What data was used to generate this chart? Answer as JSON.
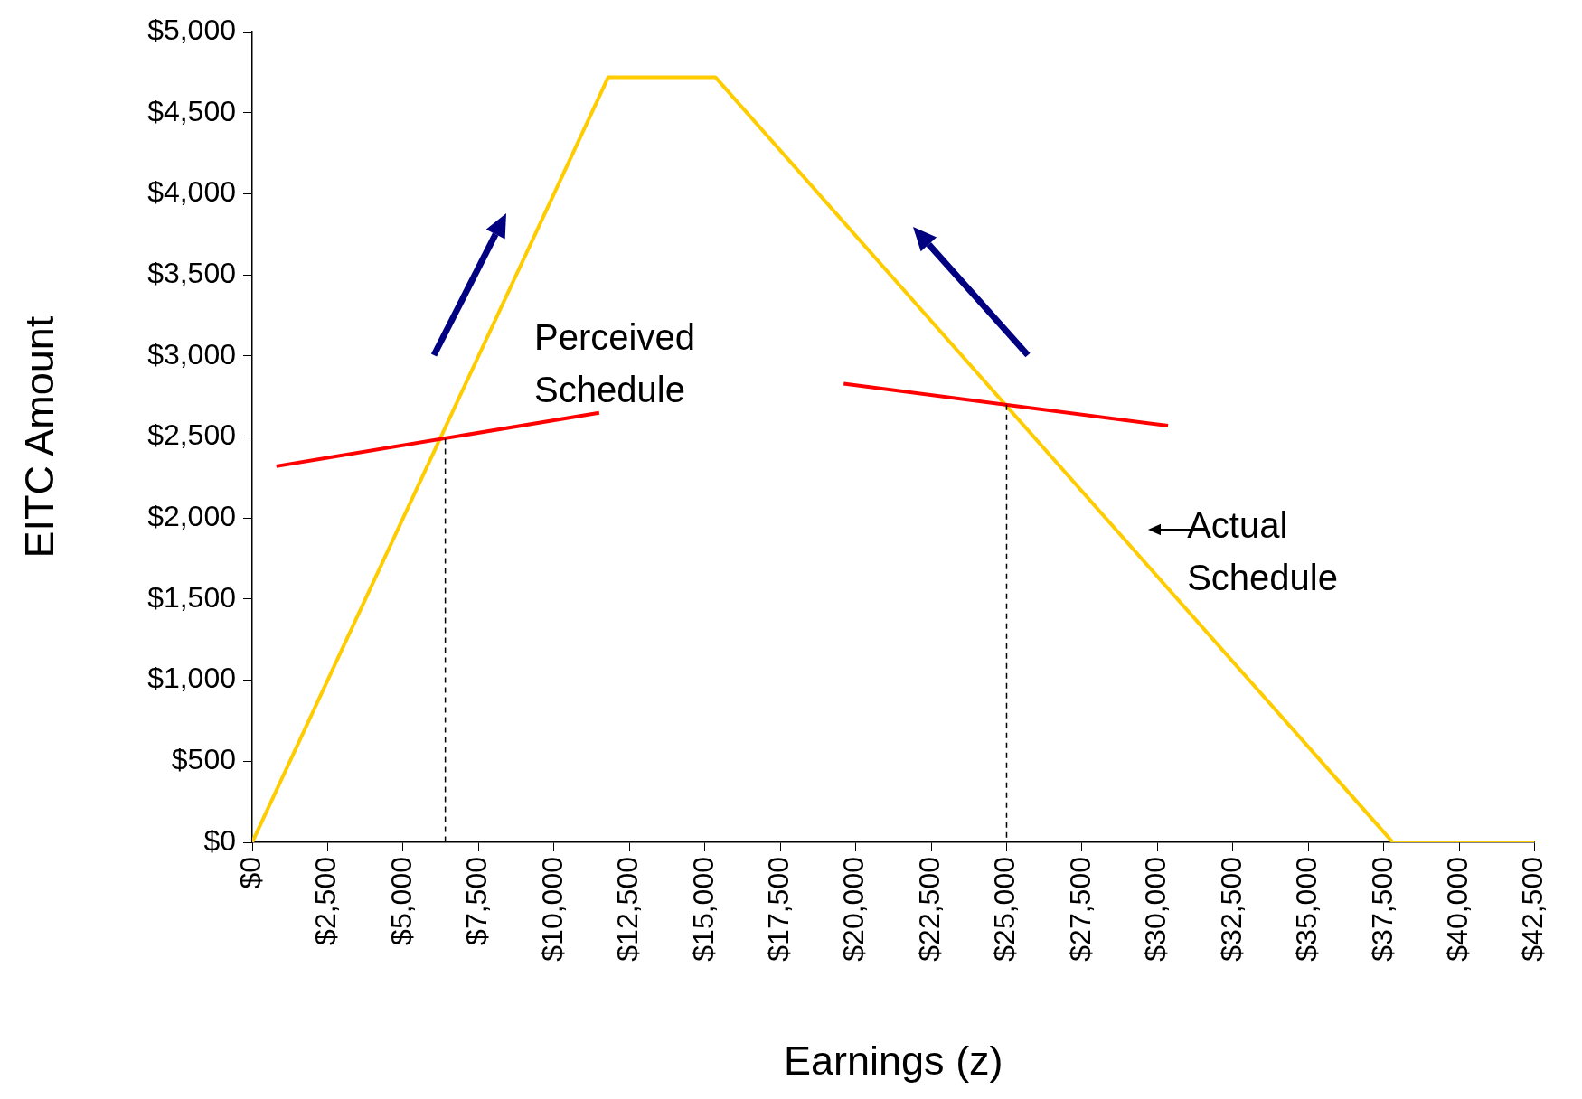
{
  "chart_data": {
    "type": "line",
    "xlabel": "Earnings (z)",
    "ylabel": "EITC Amount",
    "xlim": [
      0,
      42500
    ],
    "ylim": [
      0,
      5000
    ],
    "xticks": [
      {
        "value": 0,
        "label": "$0"
      },
      {
        "value": 2500,
        "label": "$2,500"
      },
      {
        "value": 5000,
        "label": "$5,000"
      },
      {
        "value": 7500,
        "label": "$7,500"
      },
      {
        "value": 10000,
        "label": "$10,000"
      },
      {
        "value": 12500,
        "label": "$12,500"
      },
      {
        "value": 15000,
        "label": "$15,000"
      },
      {
        "value": 17500,
        "label": "$17,500"
      },
      {
        "value": 20000,
        "label": "$20,000"
      },
      {
        "value": 22500,
        "label": "$22,500"
      },
      {
        "value": 25000,
        "label": "$25,000"
      },
      {
        "value": 27500,
        "label": "$27,500"
      },
      {
        "value": 30000,
        "label": "$30,000"
      },
      {
        "value": 32500,
        "label": "$32,500"
      },
      {
        "value": 35000,
        "label": "$35,000"
      },
      {
        "value": 37500,
        "label": "$37,500"
      },
      {
        "value": 40000,
        "label": "$40,000"
      },
      {
        "value": 42500,
        "label": "$42,500"
      }
    ],
    "yticks": [
      {
        "value": 0,
        "label": "$0"
      },
      {
        "value": 500,
        "label": "$500"
      },
      {
        "value": 1000,
        "label": "$1,000"
      },
      {
        "value": 1500,
        "label": "$1,500"
      },
      {
        "value": 2000,
        "label": "$2,000"
      },
      {
        "value": 2500,
        "label": "$2,500"
      },
      {
        "value": 3000,
        "label": "$3,000"
      },
      {
        "value": 3500,
        "label": "$3,500"
      },
      {
        "value": 4000,
        "label": "$4,000"
      },
      {
        "value": 4500,
        "label": "$4,500"
      },
      {
        "value": 5000,
        "label": "$5,000"
      }
    ],
    "grid": false,
    "legend": false,
    "marker": "none",
    "series": [
      {
        "color": "#ffcc00",
        "x": [
          0,
          11800,
          15350,
          37800,
          42500
        ],
        "values": [
          0,
          4720,
          4720,
          0,
          0
        ]
      },
      {
        "color": "#ff0000",
        "x": [
          800,
          11500
        ],
        "values": [
          2320,
          2650
        ]
      },
      {
        "color": "#ff0000",
        "x": [
          19600,
          30350
        ],
        "values": [
          2830,
          2570
        ]
      },
      {
        "color": "#000000",
        "line_style": "dashed",
        "x": [
          6400,
          6400
        ],
        "values": [
          2490,
          0
        ]
      },
      {
        "color": "#000000",
        "line_style": "dashed",
        "x": [
          25000,
          25000
        ],
        "values": [
          2700,
          0
        ]
      }
    ],
    "annotations": [
      "Perceived Schedule",
      "Actual Schedule"
    ]
  }
}
